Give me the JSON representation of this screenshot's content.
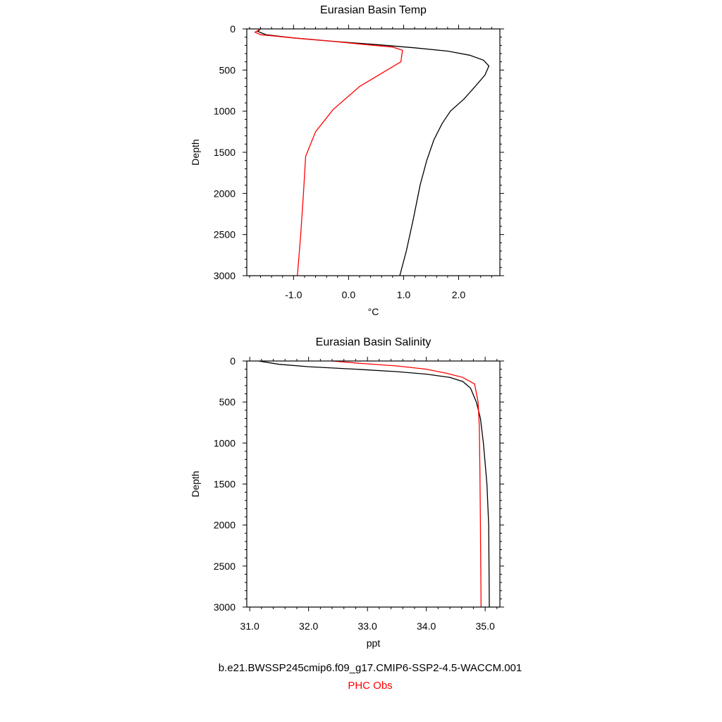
{
  "legend": {
    "model": "b.e21.BWSSP245cmip6.f09_g17.CMIP6-SSP2-4.5-WACCM.001",
    "obs": "PHC Obs",
    "model_color": "#000000",
    "obs_color": "#ff0000"
  },
  "chart_data": [
    {
      "type": "line",
      "title": "Eurasian Basin Temp",
      "xlabel": "°C",
      "ylabel": "Depth",
      "xlim": [
        -1.85,
        2.75
      ],
      "ylim": [
        3000,
        0
      ],
      "y_inverted": true,
      "x_ticks": [
        -1.0,
        0.0,
        1.0,
        2.0
      ],
      "x_tick_labels": [
        "-1.0",
        "0.0",
        "1.0",
        "2.0"
      ],
      "y_ticks": [
        0,
        500,
        1000,
        1500,
        2000,
        2500,
        3000
      ],
      "y_tick_labels": [
        "0",
        "500",
        "1000",
        "1500",
        "2000",
        "2500",
        "3000"
      ],
      "grid": false,
      "series": [
        {
          "name": "b.e21.BWSSP245cmip6.f09_g17.CMIP6-SSP2-4.5-WACCM.001",
          "color": "#000000",
          "x": [
            -1.6,
            -1.65,
            -1.5,
            -1.0,
            -0.3,
            0.5,
            1.2,
            1.8,
            2.2,
            2.45,
            2.55,
            2.48,
            2.3,
            2.1,
            1.85,
            1.7,
            1.55,
            1.42,
            1.3,
            1.18,
            1.05,
            0.93
          ],
          "y": [
            0,
            30,
            70,
            110,
            150,
            190,
            230,
            270,
            320,
            380,
            450,
            560,
            700,
            850,
            1000,
            1150,
            1350,
            1600,
            1900,
            2300,
            2700,
            3000
          ]
        },
        {
          "name": "PHC Obs",
          "color": "#ff0000",
          "x": [
            -1.6,
            -1.7,
            -1.6,
            -1.0,
            -0.3,
            0.3,
            0.8,
            0.98,
            0.95,
            0.7,
            0.2,
            -0.28,
            -0.6,
            -0.78,
            -0.82,
            -0.87,
            -0.93
          ],
          "y": [
            0,
            40,
            70,
            110,
            150,
            190,
            220,
            260,
            400,
            500,
            700,
            980,
            1250,
            1550,
            2000,
            2500,
            3000
          ]
        }
      ]
    },
    {
      "type": "line",
      "title": "Eurasian Basin Salinity",
      "xlabel": "ppt",
      "ylabel": "Depth",
      "xlim": [
        30.95,
        35.25
      ],
      "ylim": [
        3000,
        0
      ],
      "y_inverted": true,
      "x_ticks": [
        31.0,
        32.0,
        33.0,
        34.0,
        35.0
      ],
      "x_tick_labels": [
        "31.0",
        "32.0",
        "33.0",
        "34.0",
        "35.0"
      ],
      "y_ticks": [
        0,
        500,
        1000,
        1500,
        2000,
        2500,
        3000
      ],
      "y_tick_labels": [
        "0",
        "500",
        "1000",
        "1500",
        "2000",
        "2500",
        "3000"
      ],
      "grid": false,
      "series": [
        {
          "name": "b.e21.BWSSP245cmip6.f09_g17.CMIP6-SSP2-4.5-WACCM.001",
          "color": "#000000",
          "x": [
            31.15,
            31.5,
            32.0,
            32.8,
            33.5,
            34.0,
            34.4,
            34.62,
            34.75,
            34.85,
            34.92,
            34.97,
            35.03,
            35.06,
            35.07
          ],
          "y": [
            0,
            40,
            70,
            100,
            130,
            160,
            200,
            250,
            330,
            500,
            700,
            1000,
            1500,
            2000,
            3000
          ]
        },
        {
          "name": "PHC Obs",
          "color": "#ff0000",
          "x": [
            32.4,
            32.9,
            33.5,
            34.0,
            34.35,
            34.62,
            34.82,
            34.88,
            34.9,
            34.91,
            34.92,
            34.93
          ],
          "y": [
            0,
            30,
            60,
            100,
            150,
            200,
            280,
            500,
            800,
            1300,
            2000,
            3000
          ]
        }
      ]
    }
  ]
}
